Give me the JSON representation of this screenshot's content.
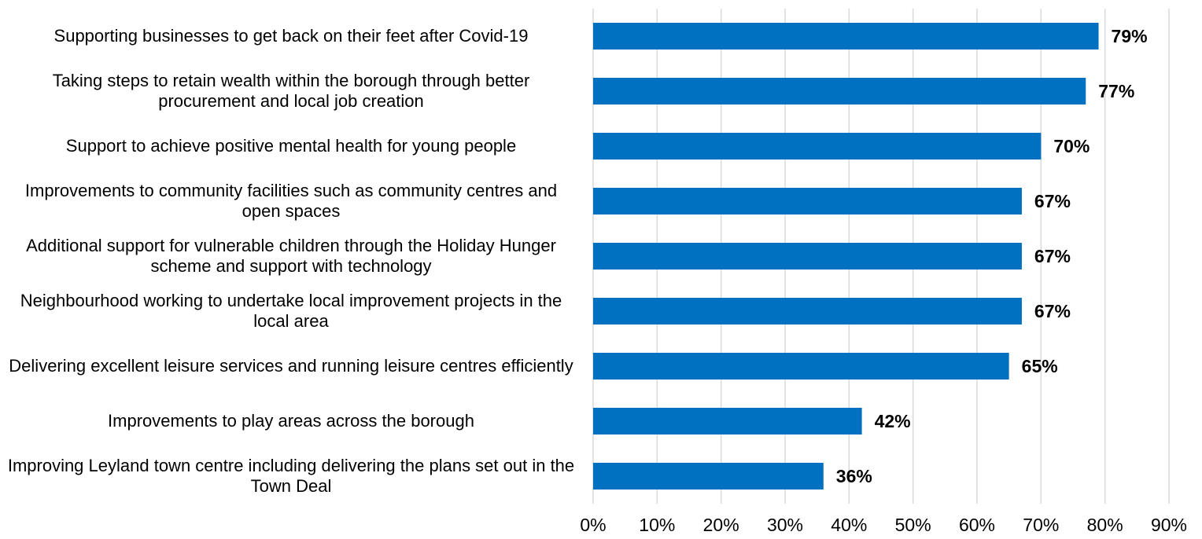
{
  "chart_data": {
    "type": "bar",
    "orientation": "horizontal",
    "categories": [
      "Supporting businesses to get back on their feet after Covid-19",
      "Taking steps to retain wealth within the borough through better procurement and local job creation",
      "Support to achieve positive mental health for young people",
      "Improvements to community facilities such as community centres and open spaces",
      "Additional support for vulnerable children through the Holiday Hunger scheme and support with technology",
      "Neighbourhood working to undertake local improvement projects in the local area",
      "Delivering excellent leisure services and running leisure centres efficiently",
      "Improvements to play areas across the borough",
      "Improving Leyland town centre including delivering the plans set out in the Town Deal"
    ],
    "values": [
      79,
      77,
      70,
      67,
      67,
      67,
      65,
      42,
      36
    ],
    "value_labels": [
      "79%",
      "77%",
      "70%",
      "67%",
      "67%",
      "67%",
      "65%",
      "42%",
      "36%"
    ],
    "color": "#0070c0",
    "xlim": [
      0,
      90
    ],
    "xticks": [
      {
        "value": 0,
        "label": "0%"
      },
      {
        "value": 10,
        "label": "10%"
      },
      {
        "value": 20,
        "label": "20%"
      },
      {
        "value": 30,
        "label": "30%"
      },
      {
        "value": 40,
        "label": "40%"
      },
      {
        "value": 50,
        "label": "50%"
      },
      {
        "value": 60,
        "label": "60%"
      },
      {
        "value": 70,
        "label": "70%"
      },
      {
        "value": 80,
        "label": "80%"
      },
      {
        "value": 90,
        "label": "90%"
      }
    ],
    "grid": true
  }
}
